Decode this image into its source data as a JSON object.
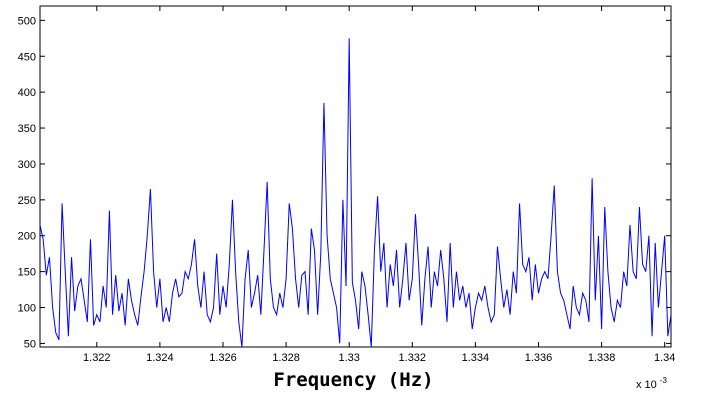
{
  "chart_data": {
    "type": "line",
    "title": "",
    "xlabel": "Frequency (Hz)",
    "ylabel": "",
    "x_multiplier_label": "x 10",
    "x_multiplier_exponent": "-3",
    "xlim": [
      1.3202,
      1.3402
    ],
    "ylim": [
      45,
      520
    ],
    "x_ticks": [
      1.322,
      1.324,
      1.326,
      1.328,
      1.33,
      1.332,
      1.334,
      1.336,
      1.338,
      1.34
    ],
    "x_tick_labels": [
      "1.322",
      "1.324",
      "1.326",
      "1.328",
      "1.33",
      "1.332",
      "1.334",
      "1.336",
      "1.338",
      "1.34"
    ],
    "y_ticks": [
      50,
      100,
      150,
      200,
      250,
      300,
      350,
      400,
      450,
      500
    ],
    "y_tick_labels": [
      "50",
      "100",
      "150",
      "200",
      "250",
      "300",
      "350",
      "400",
      "450",
      "500"
    ],
    "grid": false,
    "legend": "none",
    "line_color": "#0000ff",
    "series": [
      {
        "x": [
          1.3202,
          1.3203,
          1.3204,
          1.3205,
          1.3206,
          1.3207,
          1.3208,
          1.3209,
          1.321,
          1.3211,
          1.3212,
          1.3213,
          1.3214,
          1.3215,
          1.3216,
          1.3217,
          1.3218,
          1.3219,
          1.322,
          1.3221,
          1.3222,
          1.3223,
          1.3224,
          1.3225,
          1.3226,
          1.3227,
          1.3228,
          1.3229,
          1.323,
          1.3231,
          1.3232,
          1.3233,
          1.3234,
          1.3235,
          1.3236,
          1.3237,
          1.3238,
          1.3239,
          1.324,
          1.3241,
          1.3242,
          1.3243,
          1.3244,
          1.3245,
          1.3246,
          1.3247,
          1.3248,
          1.3249,
          1.325,
          1.3251,
          1.3252,
          1.3253,
          1.3254,
          1.3255,
          1.3256,
          1.3257,
          1.3258,
          1.3259,
          1.326,
          1.3261,
          1.3262,
          1.3263,
          1.3264,
          1.3265,
          1.3266,
          1.3267,
          1.3268,
          1.3269,
          1.327,
          1.3271,
          1.3272,
          1.3273,
          1.3274,
          1.3275,
          1.3276,
          1.3277,
          1.3278,
          1.3279,
          1.328,
          1.3281,
          1.3282,
          1.3283,
          1.3284,
          1.3285,
          1.3286,
          1.3287,
          1.3288,
          1.3289,
          1.329,
          1.3291,
          1.3292,
          1.3293,
          1.3294,
          1.3295,
          1.3296,
          1.3297,
          1.3298,
          1.3299,
          1.33,
          1.3301,
          1.3302,
          1.3303,
          1.3304,
          1.3305,
          1.3306,
          1.3307,
          1.3308,
          1.3309,
          1.331,
          1.3311,
          1.3312,
          1.3313,
          1.3314,
          1.3315,
          1.3316,
          1.3317,
          1.3318,
          1.3319,
          1.332,
          1.3321,
          1.3322,
          1.3323,
          1.3324,
          1.3325,
          1.3326,
          1.3327,
          1.3328,
          1.3329,
          1.333,
          1.3331,
          1.3332,
          1.3333,
          1.3334,
          1.3335,
          1.3336,
          1.3337,
          1.3338,
          1.3339,
          1.334,
          1.3341,
          1.3342,
          1.3343,
          1.3344,
          1.3345,
          1.3346,
          1.3347,
          1.3348,
          1.3349,
          1.335,
          1.3351,
          1.3352,
          1.3353,
          1.3354,
          1.3355,
          1.3356,
          1.3357,
          1.3358,
          1.3359,
          1.336,
          1.3361,
          1.3362,
          1.3363,
          1.3364,
          1.3365,
          1.3366,
          1.3367,
          1.3368,
          1.3369,
          1.337,
          1.3371,
          1.3372,
          1.3373,
          1.3374,
          1.3375,
          1.3376,
          1.3377,
          1.3378,
          1.3379,
          1.338,
          1.3381,
          1.3382,
          1.3383,
          1.3384,
          1.3385,
          1.3386,
          1.3387,
          1.3388,
          1.3389,
          1.339,
          1.3391,
          1.3392,
          1.3393,
          1.3394,
          1.3395,
          1.3396,
          1.3397,
          1.3398,
          1.3399,
          1.34,
          1.3401,
          1.3402
        ],
        "y": [
          215,
          195,
          145,
          170,
          100,
          65,
          55,
          245,
          150,
          60,
          170,
          95,
          130,
          140,
          110,
          80,
          195,
          75,
          90,
          80,
          130,
          100,
          235,
          90,
          145,
          95,
          120,
          75,
          140,
          110,
          90,
          75,
          115,
          150,
          200,
          265,
          150,
          100,
          140,
          80,
          100,
          80,
          120,
          140,
          115,
          120,
          150,
          140,
          160,
          195,
          130,
          100,
          150,
          90,
          80,
          100,
          175,
          90,
          130,
          100,
          160,
          250,
          150,
          80,
          45,
          140,
          180,
          100,
          120,
          145,
          90,
          180,
          275,
          140,
          100,
          90,
          120,
          100,
          140,
          245,
          210,
          140,
          100,
          145,
          150,
          90,
          210,
          180,
          90,
          175,
          385,
          200,
          140,
          120,
          100,
          50,
          250,
          130,
          475,
          135,
          110,
          70,
          150,
          130,
          90,
          45,
          180,
          255,
          150,
          190,
          100,
          160,
          130,
          180,
          100,
          140,
          190,
          110,
          140,
          230,
          160,
          75,
          140,
          185,
          100,
          150,
          130,
          180,
          140,
          80,
          190,
          100,
          150,
          110,
          130,
          100,
          120,
          70,
          100,
          120,
          110,
          130,
          100,
          80,
          90,
          185,
          140,
          100,
          125,
          90,
          150,
          120,
          245,
          160,
          150,
          170,
          110,
          160,
          120,
          140,
          150,
          140,
          200,
          270,
          150,
          120,
          110,
          90,
          70,
          130,
          100,
          90,
          120,
          110,
          80,
          280,
          110,
          200,
          70,
          240,
          150,
          100,
          80,
          110,
          100,
          150,
          130,
          215,
          150,
          140,
          240,
          160,
          150,
          200,
          60,
          190,
          100,
          150,
          200,
          60,
          90
        ]
      }
    ]
  }
}
